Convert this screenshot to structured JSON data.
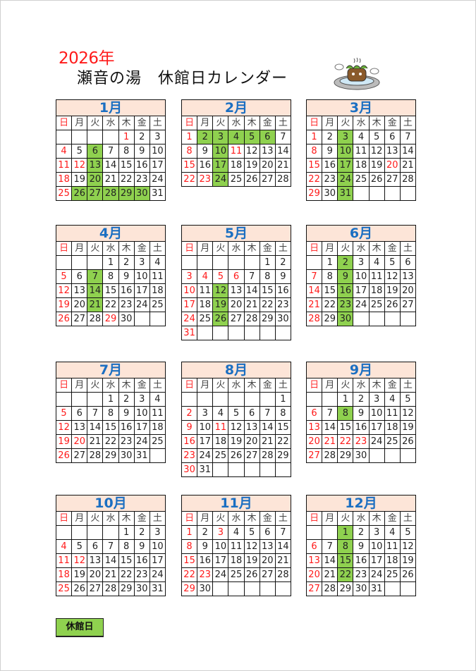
{
  "header": {
    "year": "2026年",
    "title": "瀬音の湯　休館日カレンダー"
  },
  "weekdays": [
    "日",
    "月",
    "火",
    "水",
    "木",
    "金",
    "土"
  ],
  "colors": {
    "closed": "#8fd14f",
    "holiday": "#ff1a1a",
    "month_header_bg": "#fde5d8",
    "month_title": "#1b6fc2"
  },
  "months": [
    {
      "label": "1月",
      "start": 4,
      "days": 31,
      "holidays": [
        1,
        12
      ],
      "closed": [
        6,
        13,
        20,
        26,
        27,
        28,
        29,
        30
      ]
    },
    {
      "label": "2月",
      "start": 0,
      "days": 28,
      "holidays": [
        11,
        23
      ],
      "closed": [
        2,
        3,
        4,
        5,
        6,
        10,
        17,
        24
      ]
    },
    {
      "label": "3月",
      "start": 0,
      "days": 31,
      "holidays": [
        20
      ],
      "closed": [
        3,
        10,
        17,
        24,
        31
      ]
    },
    {
      "label": "4月",
      "start": 3,
      "days": 30,
      "holidays": [
        29
      ],
      "closed": [
        7,
        14,
        21
      ]
    },
    {
      "label": "5月",
      "start": 5,
      "days": 31,
      "holidays": [
        3,
        4,
        5,
        6
      ],
      "closed": [
        12,
        19,
        26
      ]
    },
    {
      "label": "6月",
      "start": 1,
      "days": 30,
      "holidays": [],
      "closed": [
        2,
        9,
        16,
        23,
        30
      ]
    },
    {
      "label": "7月",
      "start": 3,
      "days": 31,
      "holidays": [
        20
      ],
      "closed": []
    },
    {
      "label": "8月",
      "start": 6,
      "days": 31,
      "holidays": [
        11
      ],
      "closed": []
    },
    {
      "label": "9月",
      "start": 2,
      "days": 30,
      "holidays": [
        21,
        22,
        23
      ],
      "closed": [
        8
      ]
    },
    {
      "label": "10月",
      "start": 4,
      "days": 31,
      "holidays": [
        12
      ],
      "closed": []
    },
    {
      "label": "11月",
      "start": 0,
      "days": 30,
      "holidays": [
        3,
        23
      ],
      "closed": []
    },
    {
      "label": "12月",
      "start": 2,
      "days": 31,
      "holidays": [],
      "closed": [
        1,
        8,
        15,
        22
      ]
    }
  ],
  "legend": {
    "label": "休館日"
  },
  "mascot_icon": "hot-spring-mascot"
}
